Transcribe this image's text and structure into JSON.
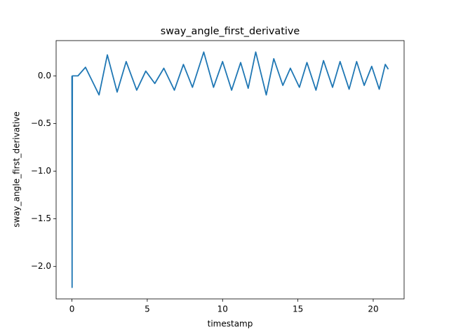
{
  "chart_data": {
    "type": "line",
    "title": "sway_angle_first_derivative",
    "x_label": "timestamp",
    "y_label": "sway_angle_first_derivative",
    "x": [
      0,
      0.01,
      0.03,
      0.4,
      0.9,
      1.8,
      2.35,
      3.0,
      3.6,
      4.3,
      4.9,
      5.5,
      6.1,
      6.8,
      7.4,
      8.0,
      8.75,
      9.4,
      10.0,
      10.6,
      11.2,
      11.7,
      12.2,
      12.9,
      13.4,
      14.0,
      14.5,
      15.1,
      15.6,
      16.2,
      16.7,
      17.3,
      17.8,
      18.4,
      18.9,
      19.4,
      19.9,
      20.4,
      20.8,
      21.0
    ],
    "series": [
      {
        "name": "sway_angle_first_derivative",
        "color": "#1f77b4",
        "values": [
          0,
          -2.22,
          0,
          0,
          0.09,
          -0.2,
          0.22,
          -0.17,
          0.15,
          -0.15,
          0.05,
          -0.08,
          0.08,
          -0.15,
          0.12,
          -0.12,
          0.25,
          -0.12,
          0.15,
          -0.15,
          0.14,
          -0.13,
          0.25,
          -0.2,
          0.18,
          -0.1,
          0.08,
          -0.12,
          0.14,
          -0.15,
          0.16,
          -0.12,
          0.15,
          -0.14,
          0.15,
          -0.1,
          0.1,
          -0.14,
          0.12,
          0.07
        ]
      }
    ],
    "xlim": [
      -1.05,
      22.05
    ],
    "ylim": [
      -2.34,
      0.37
    ],
    "xticks": [
      0,
      5,
      10,
      15,
      20
    ],
    "yticks": [
      {
        "value": -2.0,
        "label": "−2.0"
      },
      {
        "value": -1.5,
        "label": "−1.5"
      },
      {
        "value": -1.0,
        "label": "−1.0"
      },
      {
        "value": -0.5,
        "label": "−0.5"
      },
      {
        "value": 0.0,
        "label": "0.0"
      }
    ],
    "grid": false
  }
}
